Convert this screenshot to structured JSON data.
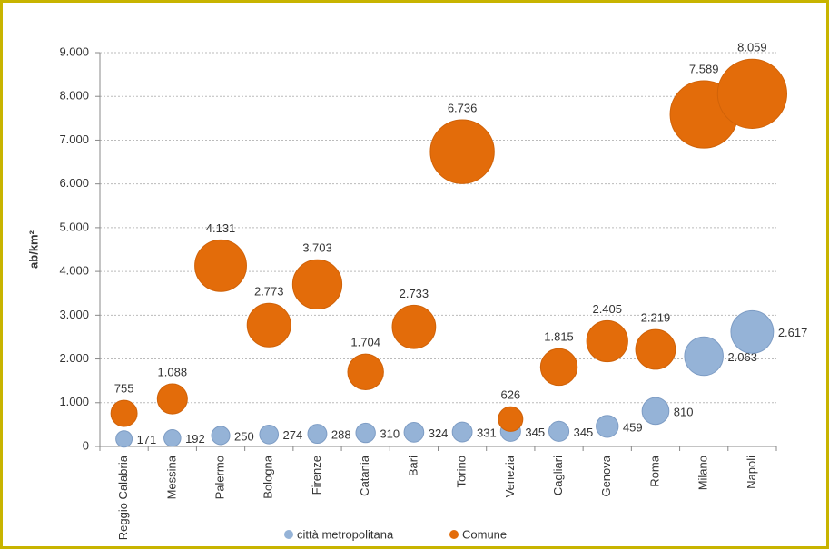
{
  "chart_data": {
    "type": "bubble",
    "y_label": "ab/km²",
    "categories": [
      "Reggio Calabria",
      "Messina",
      "Palermo",
      "Bologna",
      "Firenze",
      "Catania",
      "Bari",
      "Torino",
      "Venezia",
      "Cagliari",
      "Genova",
      "Roma",
      "Milano",
      "Napoli"
    ],
    "series": [
      {
        "name": "città metropolitana",
        "color": "#95b3d7",
        "values": [
          171,
          192,
          250,
          274,
          288,
          310,
          324,
          331,
          345,
          345,
          459,
          810,
          2063,
          2617
        ],
        "value_labels": [
          "171",
          "192",
          "250",
          "274",
          "288",
          "310",
          "324",
          "331",
          "345",
          "345",
          "459",
          "810",
          "2.063",
          "2.617"
        ]
      },
      {
        "name": "Comune",
        "color": "#e36c0a",
        "values": [
          755,
          1088,
          4131,
          2773,
          3703,
          1704,
          2733,
          6736,
          626,
          1815,
          2405,
          2219,
          7589,
          8059
        ],
        "value_labels": [
          "755",
          "1.088",
          "4.131",
          "2.773",
          "3.703",
          "1.704",
          "2.733",
          "6.736",
          "626",
          "1.815",
          "2.405",
          "2.219",
          "7.589",
          "8.059"
        ]
      }
    ],
    "ylim": [
      0,
      9000
    ],
    "yticks": [
      0,
      {
        "value": 1000,
        "label": "1.000"
      },
      {
        "value": 2000,
        "label": "2.000"
      },
      {
        "value": 3000,
        "label": "3.000"
      },
      {
        "value": 4000,
        "label": "4.000"
      },
      {
        "value": 5000,
        "label": "5.000"
      },
      {
        "value": 6000,
        "label": "6.000"
      },
      {
        "value": 7000,
        "label": "7.000"
      },
      {
        "value": 8000,
        "label": "8.000"
      },
      {
        "value": 9000,
        "label": "9.000"
      }
    ],
    "grid": true,
    "legend": "bottom"
  }
}
